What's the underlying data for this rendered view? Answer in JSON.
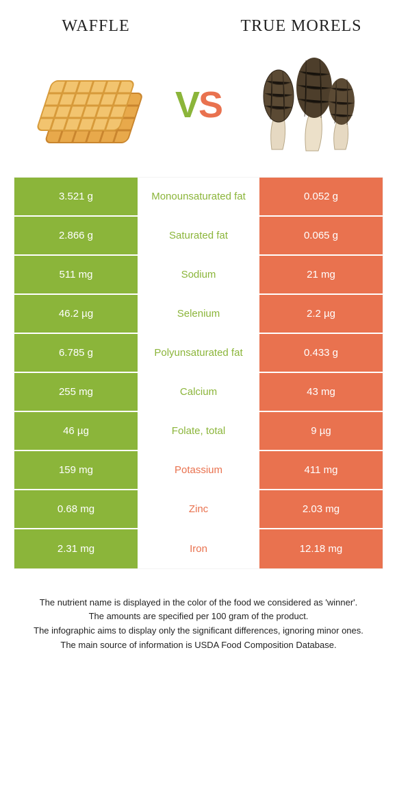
{
  "colors": {
    "green": "#8bb53a",
    "orange": "#e9724f",
    "vs_green": "#8bb53a",
    "vs_orange": "#e9724f"
  },
  "header": {
    "left_title": "Waffle",
    "right_title": "True morels",
    "vs_text": "VS"
  },
  "rows": [
    {
      "left": "3.521 g",
      "label": "Monounsaturated fat",
      "right": "0.052 g",
      "winner": "left"
    },
    {
      "left": "2.866 g",
      "label": "Saturated fat",
      "right": "0.065 g",
      "winner": "left"
    },
    {
      "left": "511 mg",
      "label": "Sodium",
      "right": "21 mg",
      "winner": "left"
    },
    {
      "left": "46.2 µg",
      "label": "Selenium",
      "right": "2.2 µg",
      "winner": "left"
    },
    {
      "left": "6.785 g",
      "label": "Polyunsaturated fat",
      "right": "0.433 g",
      "winner": "left"
    },
    {
      "left": "255 mg",
      "label": "Calcium",
      "right": "43 mg",
      "winner": "left"
    },
    {
      "left": "46 µg",
      "label": "Folate, total",
      "right": "9 µg",
      "winner": "left"
    },
    {
      "left": "159 mg",
      "label": "Potassium",
      "right": "411 mg",
      "winner": "right"
    },
    {
      "left": "0.68 mg",
      "label": "Zinc",
      "right": "2.03 mg",
      "winner": "right"
    },
    {
      "left": "2.31 mg",
      "label": "Iron",
      "right": "12.18 mg",
      "winner": "right"
    }
  ],
  "footnotes": [
    "The nutrient name is displayed in the color of the food we considered as 'winner'.",
    "The amounts are specified per 100 gram of the product.",
    "The infographic aims to display only the significant differences, ignoring minor ones.",
    "The main source of information is USDA Food Composition Database."
  ]
}
